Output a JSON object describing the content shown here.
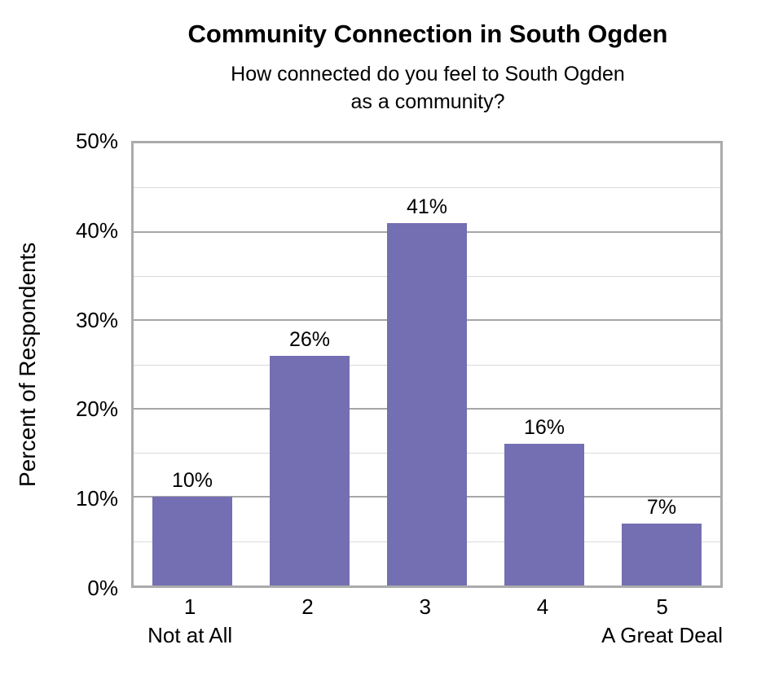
{
  "chart_data": {
    "type": "bar",
    "title": "Community Connection in South Ogden",
    "subtitle": "How connected do you feel to South Ogden\nas a community?",
    "ylabel": "Percent of Respondents",
    "xlabel": "",
    "categories": [
      "1",
      "2",
      "3",
      "4",
      "5"
    ],
    "category_sublabels": [
      "Not at All",
      "",
      "",
      "",
      "A Great Deal"
    ],
    "values": [
      10,
      26,
      41,
      16,
      7
    ],
    "value_labels": [
      "10%",
      "26%",
      "41%",
      "16%",
      "7%"
    ],
    "ylim": [
      0,
      50
    ],
    "y_major_step": 10,
    "y_minor_step": 5,
    "y_tick_labels": [
      "0%",
      "10%",
      "20%",
      "30%",
      "40%",
      "50%"
    ],
    "grid": true,
    "legend": "none",
    "colors": {
      "bar": "#746FB2",
      "gridline_major": "#A6A6A6",
      "gridline_minor": "#D9D9D9",
      "plot_border": "#ABABAB",
      "text": "#000000",
      "background": "#FFFFFF"
    }
  }
}
